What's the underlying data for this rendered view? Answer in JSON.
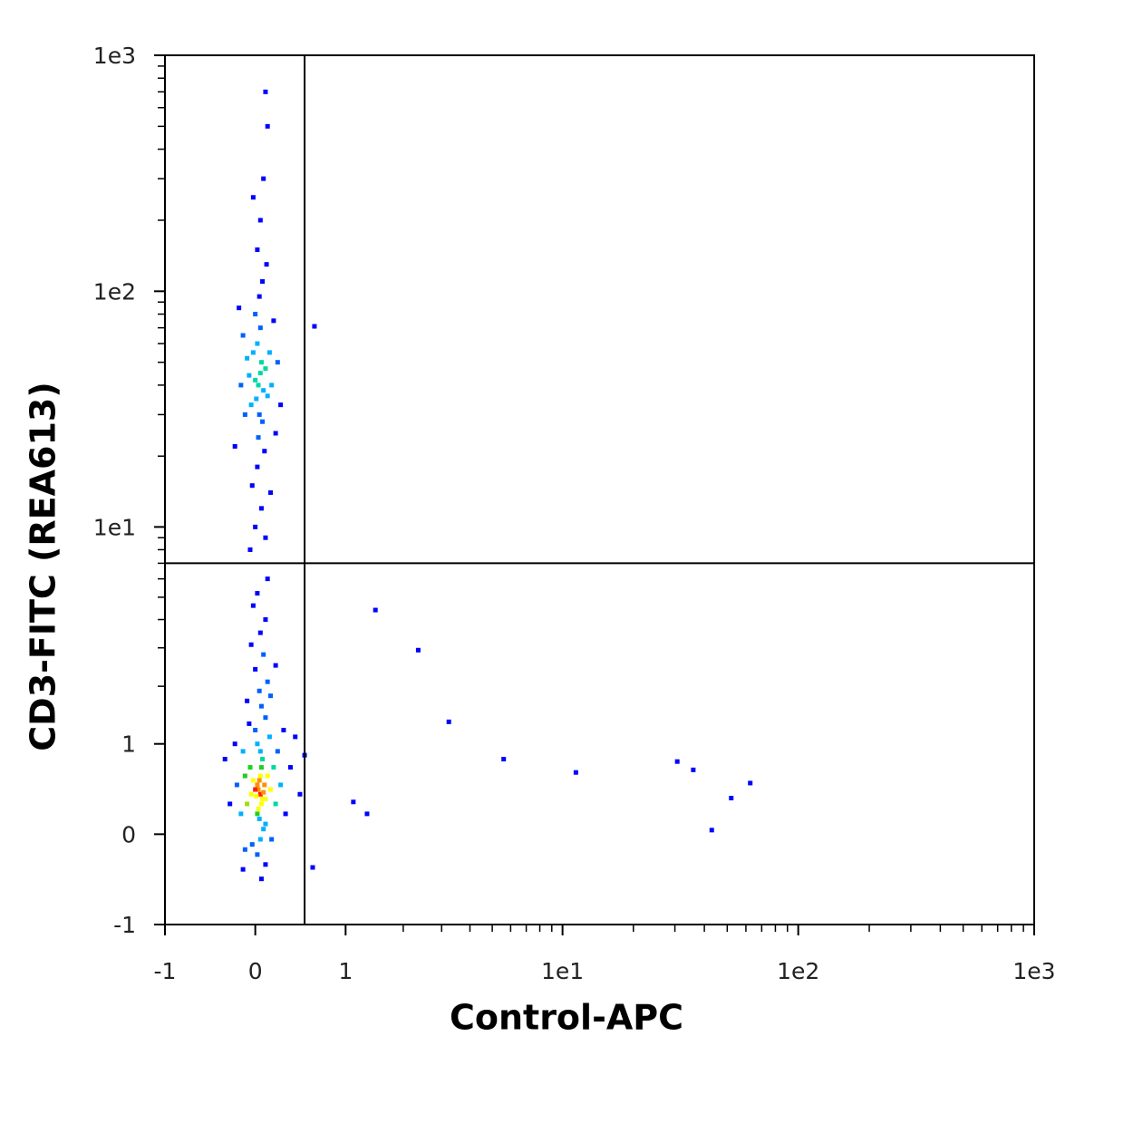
{
  "chart_data": {
    "type": "scatter",
    "x_label": "Control-APC",
    "y_label": "CD3-FITC (REA613)",
    "xscale": "asinh",
    "yscale": "asinh",
    "xlim": [
      -1,
      1000
    ],
    "ylim": [
      -1,
      1000
    ],
    "xticks": [
      -1,
      0,
      1,
      {
        "value": 10,
        "label": "1e1"
      },
      {
        "value": 100,
        "label": "1e2"
      },
      {
        "value": 1000,
        "label": "1e3"
      }
    ],
    "yticks": [
      -1,
      0,
      1,
      {
        "value": 10,
        "label": "1e1"
      },
      {
        "value": 100,
        "label": "1e2"
      },
      {
        "value": 1000,
        "label": "1e3"
      }
    ],
    "xminorticks": [
      2,
      3,
      4,
      5,
      6,
      7,
      8,
      9,
      20,
      30,
      40,
      50,
      60,
      70,
      80,
      90,
      200,
      300,
      400,
      500,
      600,
      700,
      800,
      900
    ],
    "yminorticks": [
      2,
      3,
      4,
      5,
      6,
      7,
      8,
      9,
      20,
      30,
      40,
      50,
      60,
      70,
      80,
      90,
      200,
      300,
      400,
      500,
      600,
      700,
      800,
      900
    ],
    "quadrant_gate": {
      "x": 0.5,
      "y": 7
    },
    "colormap": [
      "#0000ff",
      "#0060ff",
      "#00b0ff",
      "#00d8a0",
      "#20d020",
      "#a0e000",
      "#ffff00",
      "#ff9000",
      "#ff2000"
    ],
    "x": [
      0.05,
      0.03,
      0.07,
      0.02,
      0.06,
      0.04,
      0.08,
      0.01,
      0.05,
      0.03,
      0.09,
      0.0,
      0.06,
      0.02,
      0.1,
      -0.02,
      0.07,
      0.04,
      0.12,
      -0.04,
      0.05,
      0.1,
      -0.05,
      0.15,
      0.02,
      0.08,
      -0.08,
      0.18,
      0.0,
      0.05,
      -0.1,
      0.2,
      0.1,
      -0.03,
      0.14,
      -0.12,
      0.22,
      0.06,
      -0.06,
      0.02,
      0.16,
      -0.14,
      0.25,
      0.04,
      -0.08,
      0.12,
      0.0,
      0.1,
      -0.1,
      0.28,
      -0.18,
      0.08,
      -0.04,
      0.15,
      0.3,
      -0.2,
      0.05,
      0.1,
      -0.02,
      0.2,
      0.06,
      -0.12,
      0.35,
      -0.25,
      0.4,
      0.5,
      0.45,
      -0.3,
      0.02,
      0.12,
      0.03,
      0.05,
      0.01,
      0.06,
      0.0,
      0.04,
      0.08,
      -0.02,
      0.02,
      0.07,
      0.1,
      -0.04,
      0.05,
      0.12,
      -0.06,
      0.03,
      0.0,
      0.14,
      -0.08,
      0.09,
      0.04,
      -0.1,
      0.16,
      0.02,
      0.07,
      -0.12,
      0.18,
      -0.03,
      0.11,
      -0.14,
      0.2,
      0.06,
      -0.16,
      0.22,
      0.0,
      0.1,
      -0.05,
      0.15,
      -0.2,
      0.25,
      0.02,
      0.05,
      0.08,
      0.1,
      0.12,
      -0.02,
      1.46,
      2.35,
      3.23,
      5.6,
      11.4,
      30.7,
      35.9,
      52,
      62.6,
      43,
      1.11,
      1.32,
      0.59,
      0.61
    ],
    "y": [
      0.4,
      0.45,
      0.35,
      0.5,
      0.3,
      0.55,
      0.42,
      0.38,
      0.6,
      0.25,
      0.5,
      0.45,
      0.7,
      0.2,
      0.35,
      0.55,
      0.8,
      0.15,
      0.6,
      0.4,
      0.9,
      0.1,
      0.7,
      0.45,
      1.0,
      0.05,
      0.3,
      0.7,
      1.2,
      -0.05,
      0.6,
      0.3,
      1.4,
      -0.1,
      1.1,
      0.9,
      0.9,
      1.6,
      1.3,
      -0.2,
      -0.05,
      0.2,
      0.5,
      1.9,
      1.7,
      2.1,
      2.4,
      -0.3,
      -0.15,
      1.2,
      0.5,
      2.8,
      3.1,
      1.8,
      0.2,
      1.0,
      3.5,
      4.0,
      4.6,
      2.5,
      -0.45,
      -0.35,
      0.7,
      0.3,
      1.1,
      0.85,
      0.4,
      0.8,
      5.2,
      6.0,
      40,
      45,
      35,
      50,
      42,
      30,
      38,
      55,
      60,
      28,
      47,
      33,
      70,
      36,
      44,
      24,
      80,
      55,
      52,
      21,
      95,
      30,
      40,
      18,
      110,
      65,
      75,
      15,
      130,
      40,
      25,
      12,
      85,
      50,
      10,
      9,
      8,
      14,
      22,
      33,
      150,
      200,
      300,
      700,
      500,
      250,
      4.4,
      2.93,
      1.33,
      0.8,
      0.64,
      0.77,
      0.67,
      0.36,
      0.52,
      0.04,
      0.32,
      0.2,
      -0.33,
      71
    ]
  }
}
